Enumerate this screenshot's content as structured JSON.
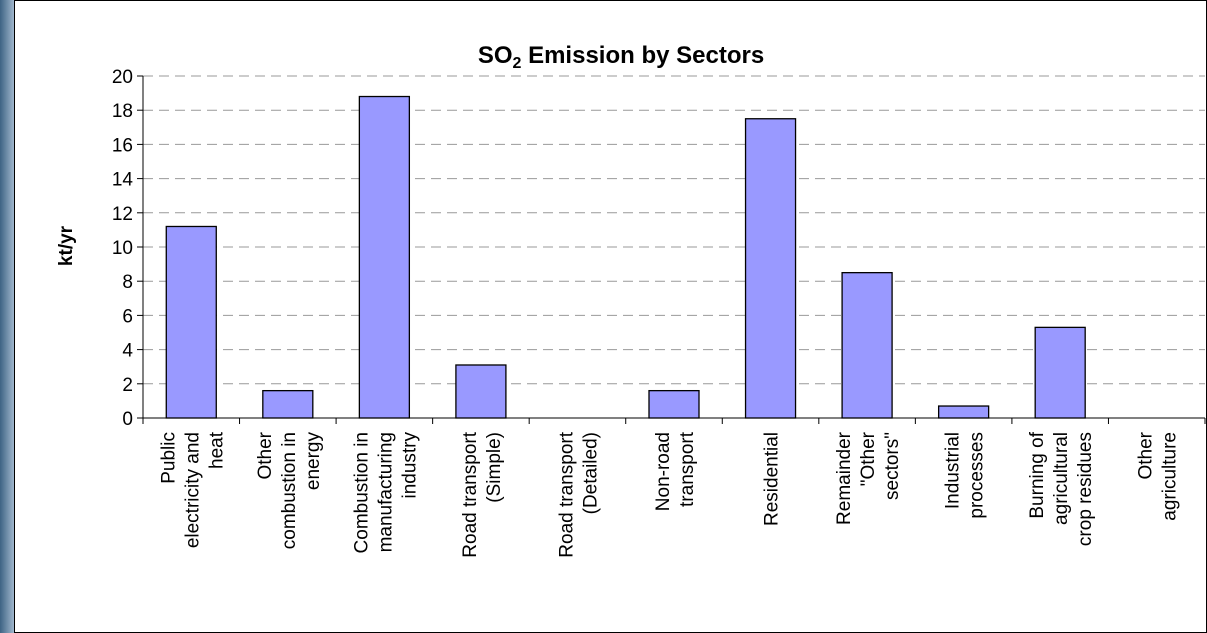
{
  "chart_data": {
    "type": "bar",
    "title": "SO2 Emission by Sectors",
    "title_main": "SO",
    "title_sub": "2",
    "title_rest": " Emission by Sectors",
    "xlabel": "",
    "ylabel": "kt/yr",
    "ylim": [
      0,
      20
    ],
    "yticks": [
      0,
      2,
      4,
      6,
      8,
      10,
      12,
      14,
      16,
      18,
      20
    ],
    "grid": "horizontal dashed",
    "legend": "none",
    "categories": [
      [
        "Public",
        "electricity and",
        "heat"
      ],
      [
        "Other",
        "combustion in",
        "energy"
      ],
      [
        "Combustion in",
        "manufacturing",
        "industry"
      ],
      [
        "Road transport",
        "(Simple)"
      ],
      [
        "Road transport",
        "(Detailed)"
      ],
      [
        "Non-road",
        "transport"
      ],
      [
        "Residential"
      ],
      [
        "Remainder",
        "\"Other",
        "sectors\""
      ],
      [
        "Industrial",
        "processes"
      ],
      [
        "Burning of",
        "agricultural",
        "crop residues"
      ],
      [
        "Other",
        "agriculture"
      ]
    ],
    "values": [
      11.2,
      1.6,
      18.8,
      3.1,
      0,
      1.6,
      17.5,
      8.5,
      0.7,
      5.3,
      0
    ],
    "bar_color": "#9999ff",
    "bar_edge_color": "#000000"
  }
}
